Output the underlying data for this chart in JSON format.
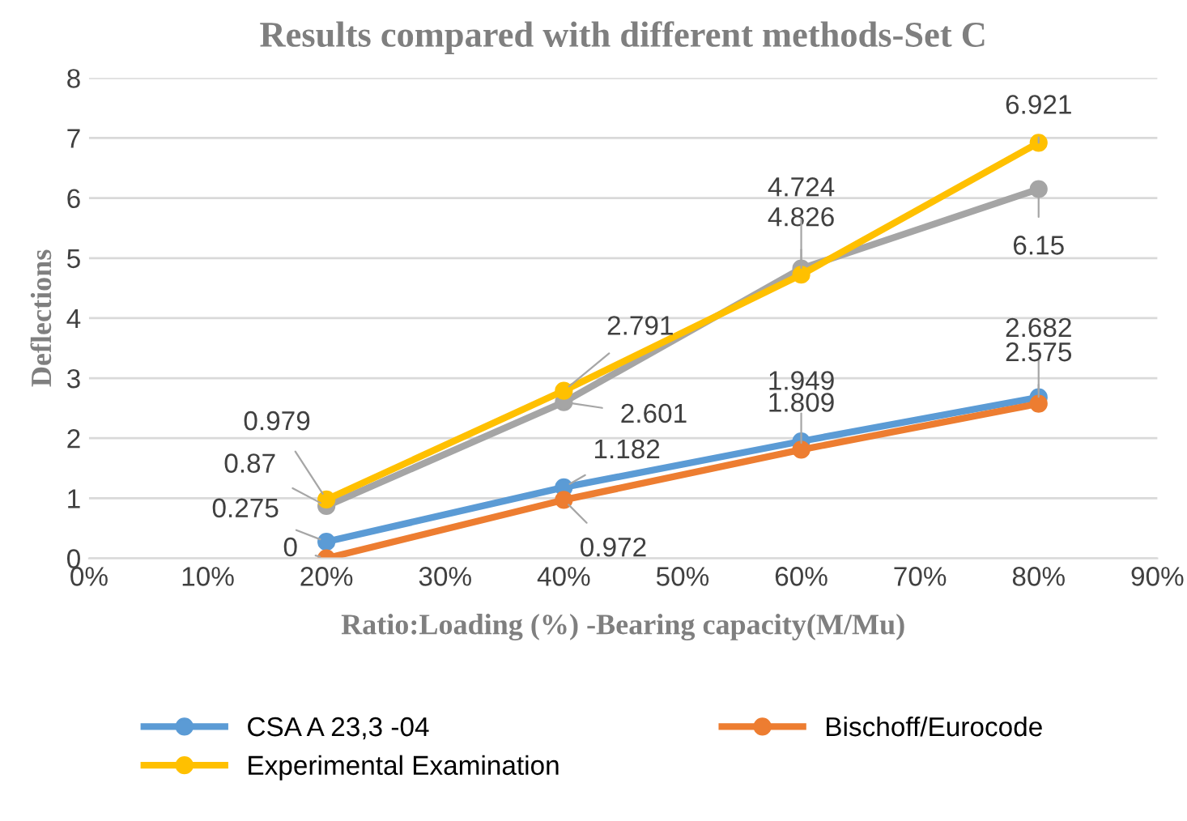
{
  "chart_data": {
    "type": "line",
    "title": "Results compared with different methods-Set C",
    "xlabel": "Ratio:Loading (%) -Bearing capacity(M/Mu)",
    "ylabel": "Deflections",
    "x": [
      20,
      40,
      60,
      80
    ],
    "series": [
      {
        "name": "CSA A 23,3 -04",
        "color": "#5b9bd5",
        "values": [
          0.275,
          1.182,
          1.949,
          2.682
        ]
      },
      {
        "name": "Bischoff/Eurocode",
        "color": "#ed7d31",
        "values": [
          0,
          0.972,
          1.809,
          2.575
        ]
      },
      {
        "color": "#a5a5a5",
        "values": [
          0.87,
          2.601,
          4.826,
          6.15
        ]
      },
      {
        "name": "Experimental Examination",
        "color": "#ffc000",
        "values": [
          0.979,
          2.791,
          4.724,
          6.921
        ]
      }
    ],
    "xlim": [
      0,
      90
    ],
    "xticks": [
      {
        "value": 0,
        "label": "0%"
      },
      {
        "value": 10,
        "label": "10%"
      },
      {
        "value": 20,
        "label": "20%"
      },
      {
        "value": 30,
        "label": "30%"
      },
      {
        "value": 40,
        "label": "40%"
      },
      {
        "value": 50,
        "label": "50%"
      },
      {
        "value": 60,
        "label": "60%"
      },
      {
        "value": 70,
        "label": "70%"
      },
      {
        "value": 80,
        "label": "80%"
      },
      {
        "value": 90,
        "label": "90%"
      }
    ],
    "ylim": [
      0,
      8
    ],
    "yticks": [
      0,
      1,
      2,
      3,
      4,
      5,
      6,
      7,
      8
    ],
    "grid": "y",
    "legend": "bottom",
    "marker": "circle",
    "line_style": "solid",
    "data_labels": true
  }
}
